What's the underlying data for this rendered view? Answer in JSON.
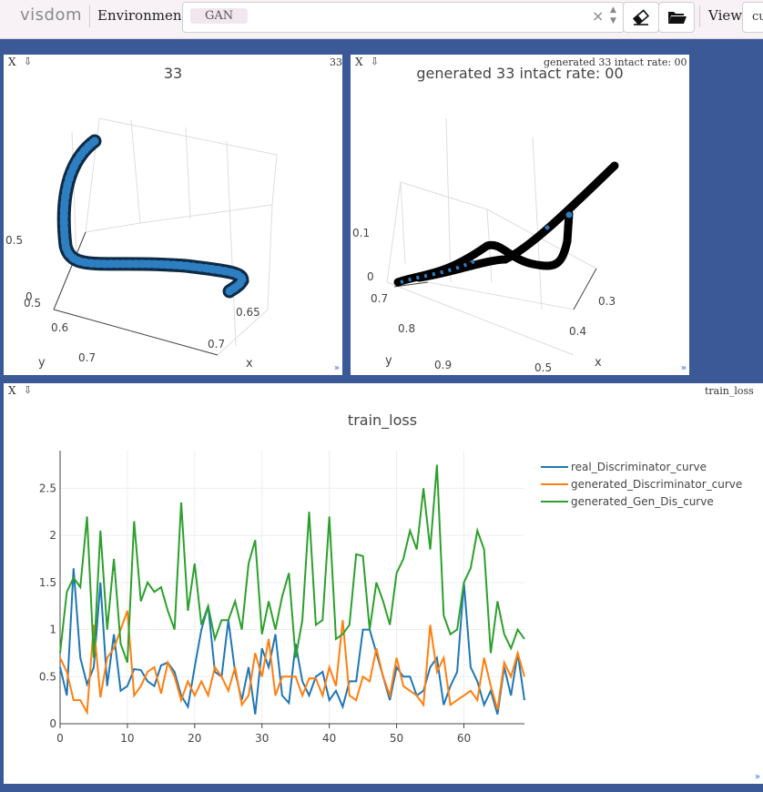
{
  "header": {
    "logo": "visdom",
    "env_label": "Environment",
    "env_tag": "GAN",
    "clear_symbol": "×",
    "spin_up": "▲",
    "spin_down": "▼",
    "view_label": "View",
    "view_value": "cu"
  },
  "panes": [
    {
      "close": "X",
      "download": "⇩",
      "title_right": "33",
      "plot_title": "33",
      "resize": "»",
      "z_ticks": [
        "0.5",
        "0"
      ],
      "y_ticks": [
        "0.5",
        "0.6",
        "0.7"
      ],
      "x_ticks": [
        "0.65",
        "0.7"
      ],
      "y_label": "y",
      "x_label": "x"
    },
    {
      "close": "X",
      "download": "⇩",
      "title_right": "generated 33 intact rate: 00",
      "plot_title": "generated 33  intact rate: 00",
      "resize": "»",
      "z_ticks": [
        "0.1",
        "0"
      ],
      "y_ticks": [
        "0.7",
        "0.8",
        "0.9"
      ],
      "x_ticks": [
        "0.3",
        "0.4",
        "0.5"
      ],
      "y_label": "y",
      "x_label": "x"
    },
    {
      "close": "X",
      "download": "⇩",
      "title_right": "train_loss",
      "resize": "»"
    }
  ],
  "chart_data": {
    "type": "line",
    "title": "train_loss",
    "xlabel": "",
    "ylabel": "",
    "xlim": [
      0,
      69
    ],
    "ylim": [
      0,
      2.9
    ],
    "x_ticks": [
      0,
      10,
      20,
      30,
      40,
      50,
      60
    ],
    "y_ticks": [
      0,
      0.5,
      1,
      1.5,
      2,
      2.5
    ],
    "grid": true,
    "legend_position": "top-right",
    "series": [
      {
        "name": "real_Discriminator_curve",
        "color": "#1f77b4",
        "values": [
          0.6,
          0.3,
          1.65,
          0.7,
          0.42,
          0.6,
          1.5,
          0.4,
          0.95,
          0.35,
          0.4,
          0.58,
          0.57,
          0.45,
          0.4,
          0.62,
          0.65,
          0.55,
          0.3,
          0.18,
          0.6,
          1.0,
          1.25,
          0.55,
          0.5,
          1.1,
          0.55,
          0.25,
          0.6,
          0.1,
          0.8,
          0.6,
          0.95,
          0.3,
          0.22,
          0.85,
          0.45,
          0.3,
          0.5,
          0.55,
          0.25,
          0.35,
          0.18,
          0.45,
          0.45,
          1.0,
          1.0,
          0.75,
          0.5,
          0.25,
          0.6,
          0.5,
          0.5,
          0.3,
          0.35,
          0.6,
          0.7,
          0.2,
          0.4,
          0.55,
          1.5,
          0.6,
          0.45,
          0.2,
          0.35,
          0.1,
          0.6,
          0.3,
          0.75,
          0.25
        ]
      },
      {
        "name": "generated_Discriminator_curve",
        "color": "#ff7f0e",
        "values": [
          0.7,
          0.55,
          0.25,
          0.25,
          0.12,
          1.05,
          0.28,
          0.7,
          0.8,
          1.0,
          1.2,
          0.3,
          0.4,
          0.55,
          0.6,
          0.32,
          0.65,
          0.5,
          0.25,
          0.45,
          0.3,
          0.45,
          0.3,
          0.6,
          0.5,
          0.35,
          0.6,
          0.2,
          0.3,
          0.75,
          0.5,
          0.9,
          0.3,
          0.5,
          0.5,
          0.5,
          0.3,
          0.48,
          0.48,
          0.3,
          0.6,
          0.4,
          1.1,
          0.3,
          0.25,
          0.5,
          0.45,
          0.8,
          0.5,
          0.3,
          0.7,
          0.4,
          0.35,
          0.3,
          0.2,
          1.05,
          0.55,
          0.7,
          0.2,
          0.25,
          0.3,
          0.35,
          0.25,
          0.7,
          0.4,
          0.15,
          0.65,
          0.5,
          0.75,
          0.5
        ]
      },
      {
        "name": "generated_Gen_Dis_curve",
        "color": "#2ca02c",
        "values": [
          0.75,
          1.4,
          1.55,
          1.45,
          2.2,
          0.7,
          2.05,
          1.0,
          1.75,
          0.85,
          0.65,
          2.15,
          1.3,
          1.5,
          1.4,
          1.45,
          1.2,
          1.0,
          2.35,
          1.2,
          1.7,
          1.05,
          1.25,
          0.9,
          1.1,
          1.1,
          1.3,
          1.0,
          1.7,
          1.95,
          0.95,
          1.3,
          1.0,
          1.35,
          1.6,
          0.7,
          1.1,
          2.25,
          1.05,
          1.1,
          2.2,
          0.9,
          0.95,
          1.05,
          1.8,
          1.78,
          1.0,
          1.5,
          1.3,
          1.05,
          1.6,
          1.75,
          2.05,
          1.85,
          2.5,
          1.85,
          2.75,
          1.15,
          0.95,
          1.0,
          1.5,
          1.65,
          2.05,
          1.85,
          0.75,
          1.3,
          0.95,
          0.8,
          1.0,
          0.9
        ]
      }
    ]
  }
}
